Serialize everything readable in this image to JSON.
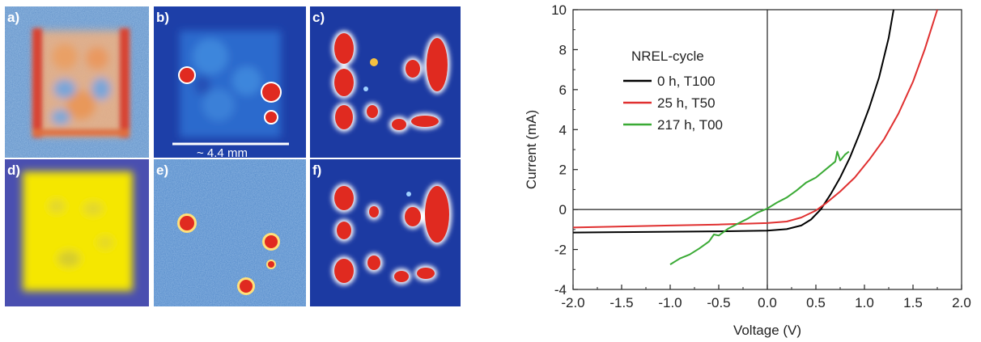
{
  "images": {
    "labels": [
      "a)",
      "b)",
      "c)",
      "d)",
      "e)",
      "f)"
    ],
    "scale_bar_label": "~ 4.4 mm"
  },
  "chart_data": {
    "type": "line",
    "title": "",
    "xlabel": "Voltage (V)",
    "ylabel": "Current (mA)",
    "xlim": [
      -2.0,
      2.0
    ],
    "ylim": [
      -4,
      10
    ],
    "x_ticks": [
      -2.0,
      -1.5,
      -1.0,
      -0.5,
      0.0,
      0.5,
      1.0,
      1.5,
      2.0
    ],
    "x_tick_labels": [
      "-2.0",
      "-1.5",
      "-1.0",
      "-0.5",
      "0.0",
      "0.5",
      "1.0",
      "1.5",
      "2.0"
    ],
    "y_ticks": [
      -4,
      -2,
      0,
      2,
      4,
      6,
      8,
      10
    ],
    "y_tick_labels": [
      "-4",
      "-2",
      "0",
      "2",
      "4",
      "6",
      "8",
      "10"
    ],
    "grid": false,
    "legend": {
      "title": "NREL-cycle",
      "placement": "top-left"
    },
    "series": [
      {
        "name": "0 h, T100",
        "color": "#000000",
        "x": [
          -2.0,
          -1.5,
          -1.0,
          -0.5,
          0.0,
          0.2,
          0.35,
          0.45,
          0.55,
          0.65,
          0.75,
          0.85,
          0.95,
          1.05,
          1.15,
          1.25,
          1.3
        ],
        "y": [
          -1.15,
          -1.13,
          -1.11,
          -1.09,
          -1.06,
          -0.98,
          -0.8,
          -0.5,
          0.0,
          0.75,
          1.6,
          2.6,
          3.8,
          5.1,
          6.6,
          8.6,
          10
        ]
      },
      {
        "name": "25 h, T50",
        "color": "#e03030",
        "x": [
          -2.0,
          -1.5,
          -1.0,
          -0.5,
          0.0,
          0.2,
          0.35,
          0.5,
          0.6,
          0.75,
          0.9,
          1.05,
          1.2,
          1.35,
          1.5,
          1.62,
          1.75
        ],
        "y": [
          -0.9,
          -0.85,
          -0.8,
          -0.75,
          -0.68,
          -0.6,
          -0.4,
          -0.05,
          0.3,
          0.9,
          1.6,
          2.5,
          3.5,
          4.8,
          6.4,
          8.0,
          10
        ]
      },
      {
        "name": "217 h, T00",
        "color": "#3aaa35",
        "x": [
          -1.0,
          -0.9,
          -0.8,
          -0.7,
          -0.6,
          -0.55,
          -0.5,
          -0.4,
          -0.3,
          -0.2,
          -0.1,
          0.0,
          0.1,
          0.2,
          0.3,
          0.4,
          0.5,
          0.6,
          0.7,
          0.72,
          0.75,
          0.8,
          0.84
        ],
        "y": [
          -2.75,
          -2.45,
          -2.25,
          -1.95,
          -1.6,
          -1.25,
          -1.3,
          -0.95,
          -0.7,
          -0.45,
          -0.15,
          0.05,
          0.35,
          0.6,
          0.95,
          1.35,
          1.6,
          2.0,
          2.4,
          2.9,
          2.45,
          2.75,
          2.9
        ]
      }
    ]
  }
}
